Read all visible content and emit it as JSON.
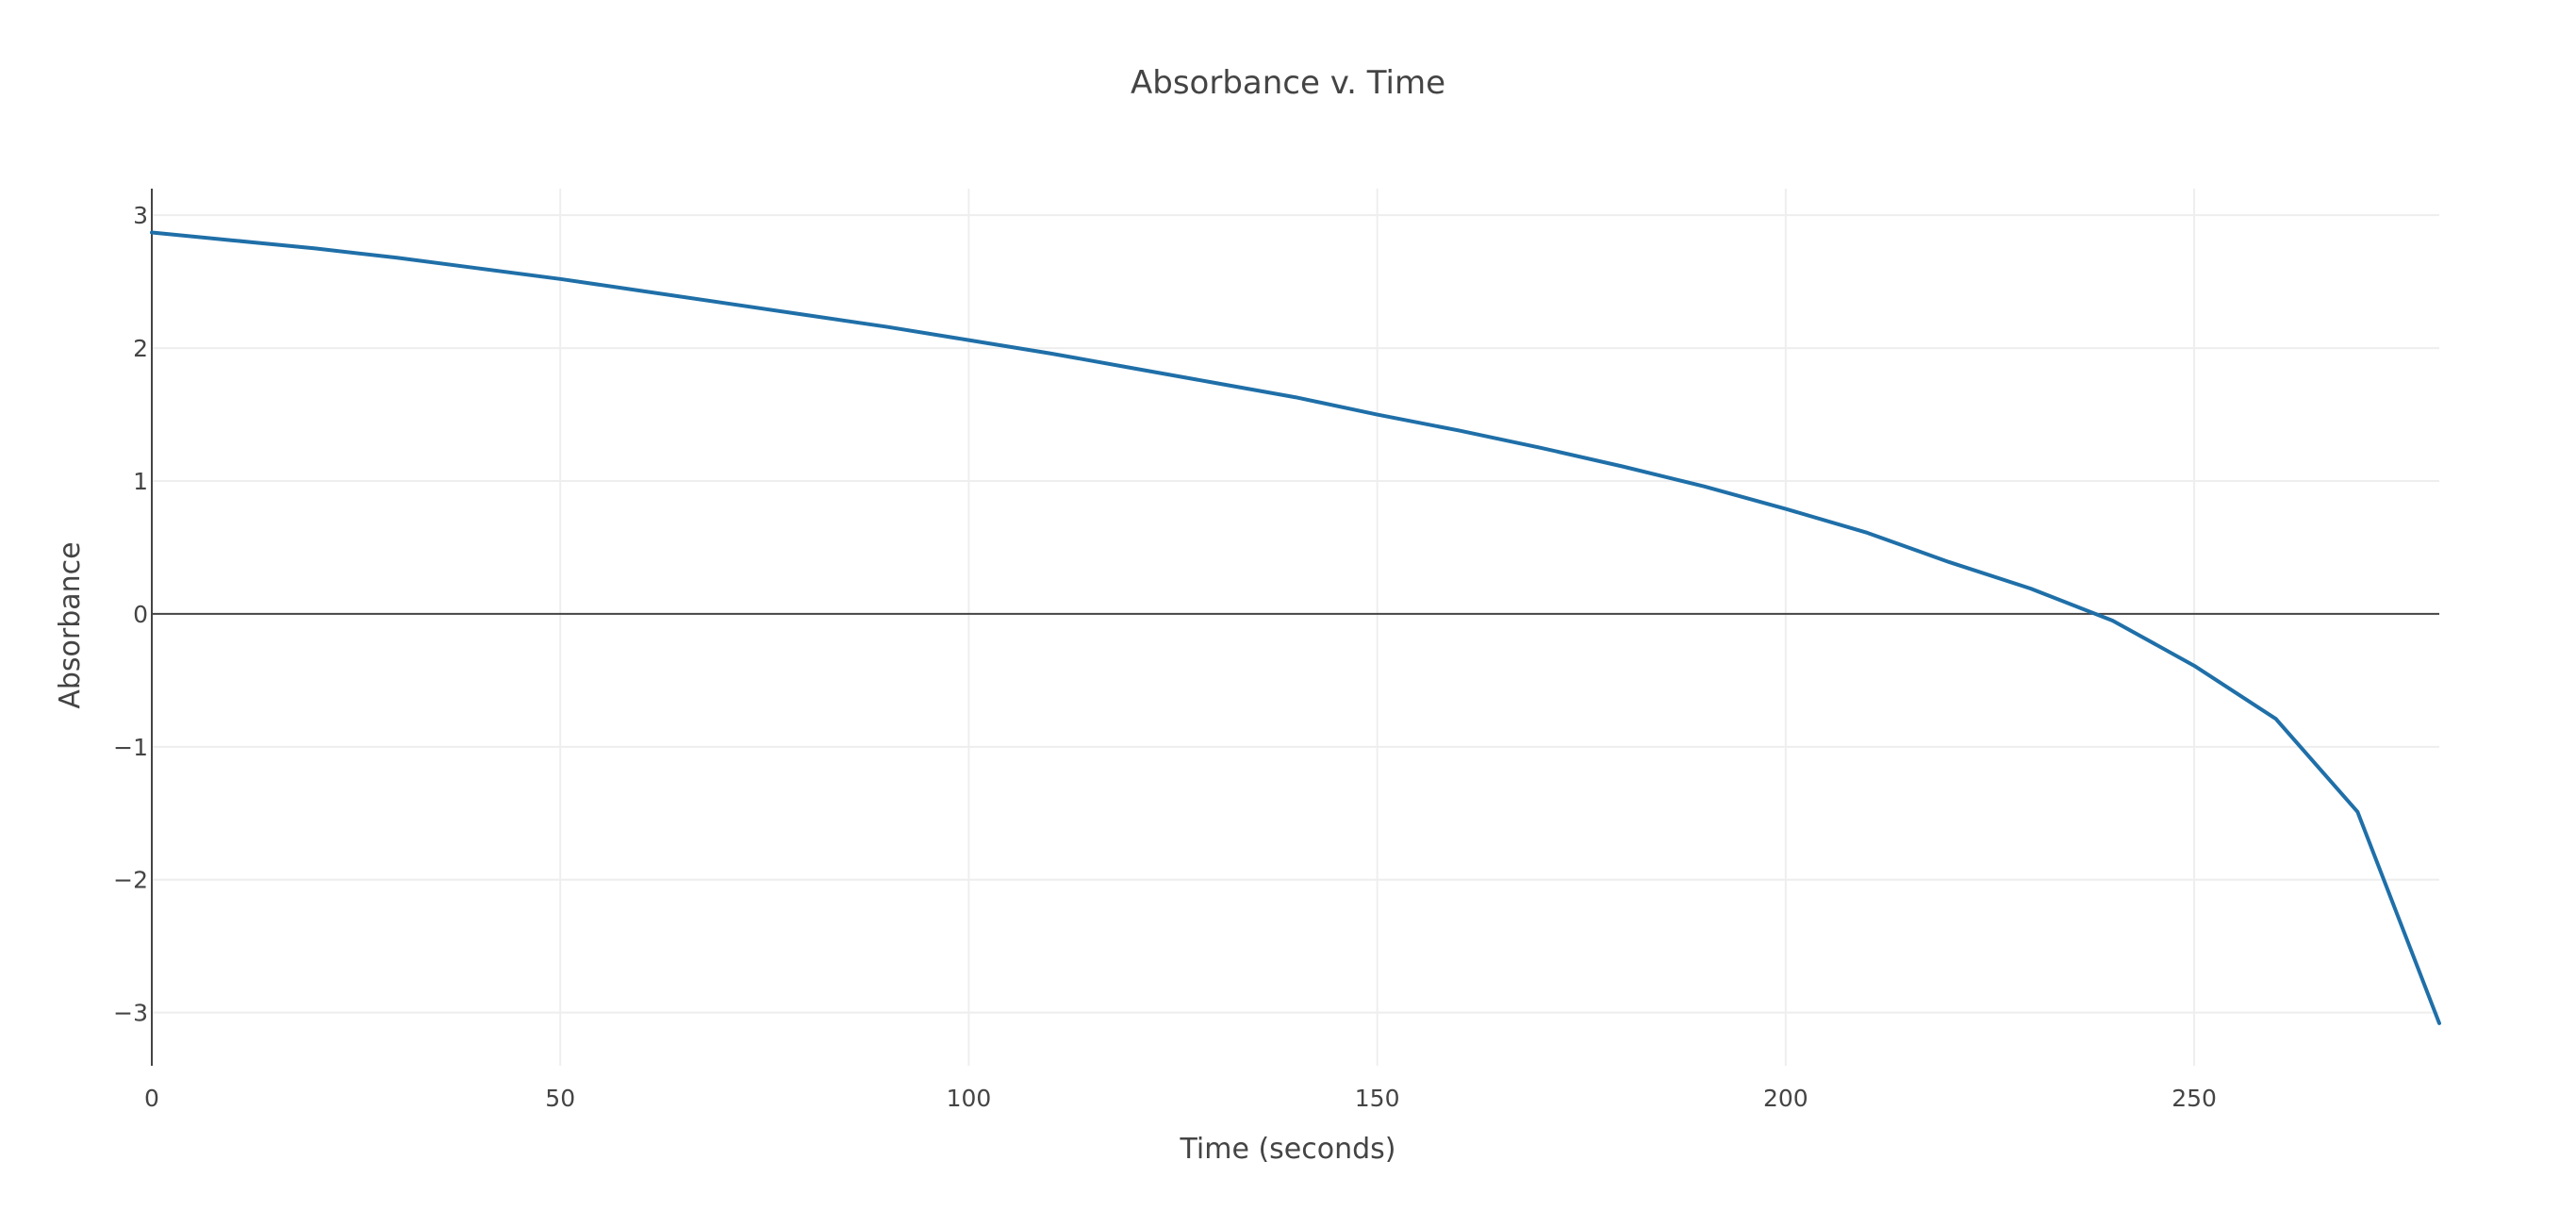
{
  "chart_data": {
    "type": "line",
    "title": "Absorbance v. Time",
    "xlabel": "Time (seconds)",
    "ylabel": "Absorbance",
    "xlim": [
      0,
      280
    ],
    "ylim": [
      -3.4,
      3.2
    ],
    "x_ticks": [
      0,
      50,
      100,
      150,
      200,
      250
    ],
    "x_tick_labels": [
      "0",
      "50",
      "100",
      "150",
      "200",
      "250"
    ],
    "y_ticks": [
      3,
      2,
      1,
      0,
      -1,
      -2,
      -3
    ],
    "y_tick_labels": [
      "3",
      "2",
      "1",
      "0",
      "−1",
      "−2",
      "−3"
    ],
    "grid": true,
    "zero_line": true,
    "colors": {
      "series": "#1f6fa8",
      "grid": "#eeeeee",
      "zeroline": "#444444",
      "axis": "#444444"
    },
    "series": [
      {
        "name": "Absorbance",
        "x": [
          0,
          10,
          20,
          30,
          40,
          50,
          60,
          70,
          80,
          90,
          100,
          110,
          120,
          130,
          140,
          150,
          160,
          170,
          180,
          190,
          200,
          210,
          220,
          230,
          240,
          250,
          260,
          270,
          280
        ],
        "y": [
          2.87,
          2.81,
          2.75,
          2.68,
          2.6,
          2.52,
          2.43,
          2.34,
          2.25,
          2.16,
          2.06,
          1.96,
          1.85,
          1.74,
          1.63,
          1.5,
          1.38,
          1.25,
          1.11,
          0.96,
          0.79,
          0.61,
          0.39,
          0.19,
          -0.05,
          -0.39,
          -0.79,
          -1.49,
          -3.08
        ]
      }
    ]
  }
}
